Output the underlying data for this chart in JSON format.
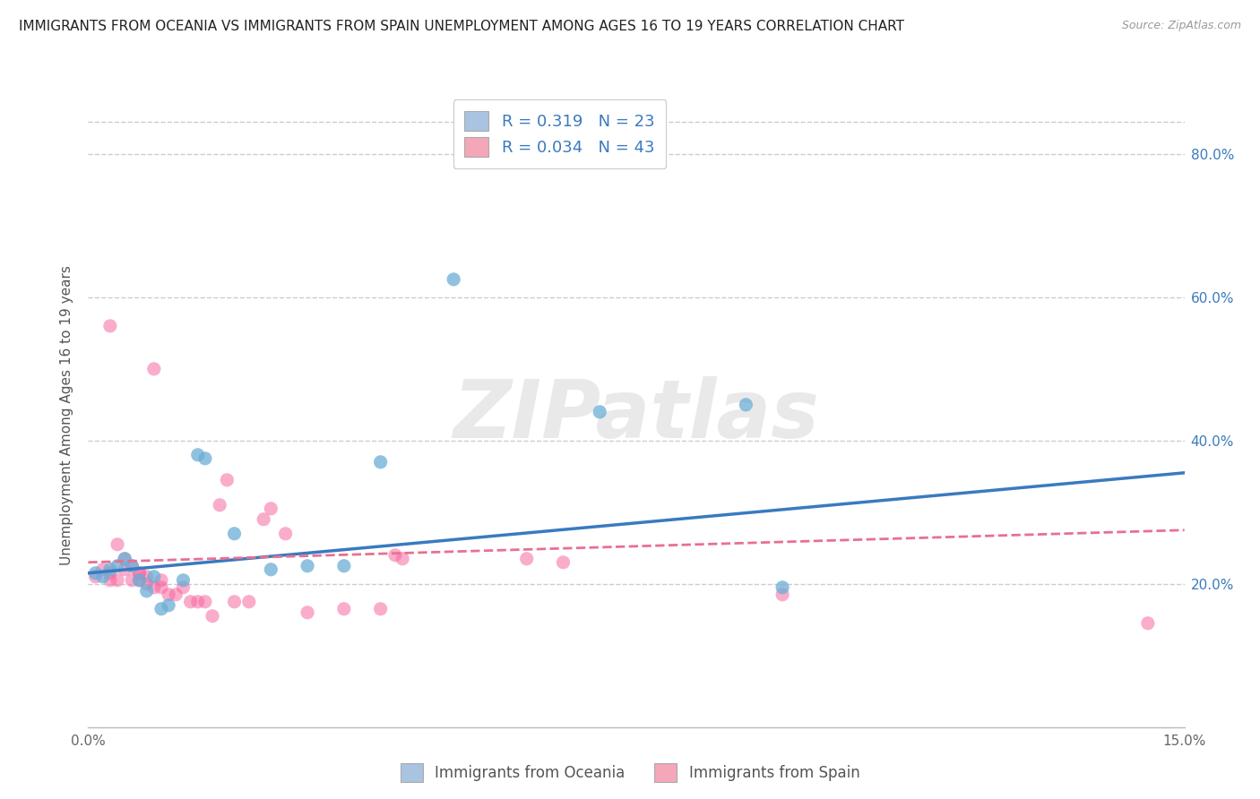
{
  "title": "IMMIGRANTS FROM OCEANIA VS IMMIGRANTS FROM SPAIN UNEMPLOYMENT AMONG AGES 16 TO 19 YEARS CORRELATION CHART",
  "source": "Source: ZipAtlas.com",
  "ylabel": "Unemployment Among Ages 16 to 19 years",
  "watermark": "ZIPatlas",
  "legend_r1_val": "0.319",
  "legend_n1_val": "23",
  "legend_r2_val": "0.034",
  "legend_n2_val": "43",
  "legend_color1": "#a8c4e0",
  "legend_color2": "#f4a7b9",
  "color_oceania": "#6baed6",
  "color_spain": "#f768a1",
  "trendline_oceania_color": "#3a7abf",
  "trendline_spain_color": "#e87090",
  "oceania_x": [
    0.001,
    0.002,
    0.003,
    0.004,
    0.005,
    0.006,
    0.007,
    0.008,
    0.009,
    0.01,
    0.011,
    0.013,
    0.015,
    0.016,
    0.02,
    0.025,
    0.03,
    0.035,
    0.04,
    0.05,
    0.07,
    0.09,
    0.095
  ],
  "oceania_y": [
    0.215,
    0.21,
    0.22,
    0.225,
    0.235,
    0.225,
    0.205,
    0.19,
    0.21,
    0.165,
    0.17,
    0.205,
    0.38,
    0.375,
    0.27,
    0.22,
    0.225,
    0.225,
    0.37,
    0.625,
    0.44,
    0.45,
    0.195
  ],
  "spain_x": [
    0.001,
    0.002,
    0.003,
    0.003,
    0.003,
    0.004,
    0.004,
    0.005,
    0.005,
    0.006,
    0.006,
    0.007,
    0.007,
    0.007,
    0.008,
    0.008,
    0.009,
    0.009,
    0.01,
    0.01,
    0.011,
    0.012,
    0.013,
    0.014,
    0.015,
    0.016,
    0.017,
    0.018,
    0.019,
    0.02,
    0.022,
    0.024,
    0.025,
    0.027,
    0.03,
    0.035,
    0.04,
    0.042,
    0.043,
    0.06,
    0.065,
    0.095,
    0.145
  ],
  "spain_y": [
    0.21,
    0.22,
    0.56,
    0.215,
    0.205,
    0.255,
    0.205,
    0.235,
    0.22,
    0.225,
    0.205,
    0.215,
    0.215,
    0.205,
    0.21,
    0.2,
    0.5,
    0.195,
    0.205,
    0.195,
    0.185,
    0.185,
    0.195,
    0.175,
    0.175,
    0.175,
    0.155,
    0.31,
    0.345,
    0.175,
    0.175,
    0.29,
    0.305,
    0.27,
    0.16,
    0.165,
    0.165,
    0.24,
    0.235,
    0.235,
    0.23,
    0.185,
    0.145
  ],
  "xmin": 0.0,
  "xmax": 0.15,
  "ymin": 0.0,
  "ymax": 0.87,
  "ytick_vals": [
    0.2,
    0.4,
    0.6,
    0.8
  ],
  "ytick_labels": [
    "20.0%",
    "40.0%",
    "60.0%",
    "80.0%"
  ],
  "grid_color": "#cccccc",
  "background_color": "#ffffff",
  "title_fontsize": 11,
  "source_fontsize": 9,
  "watermark_color": "#d0d0d0",
  "watermark_fontsize": 65,
  "bottom_legend": [
    "Immigrants from Oceania",
    "Immigrants from Spain"
  ]
}
